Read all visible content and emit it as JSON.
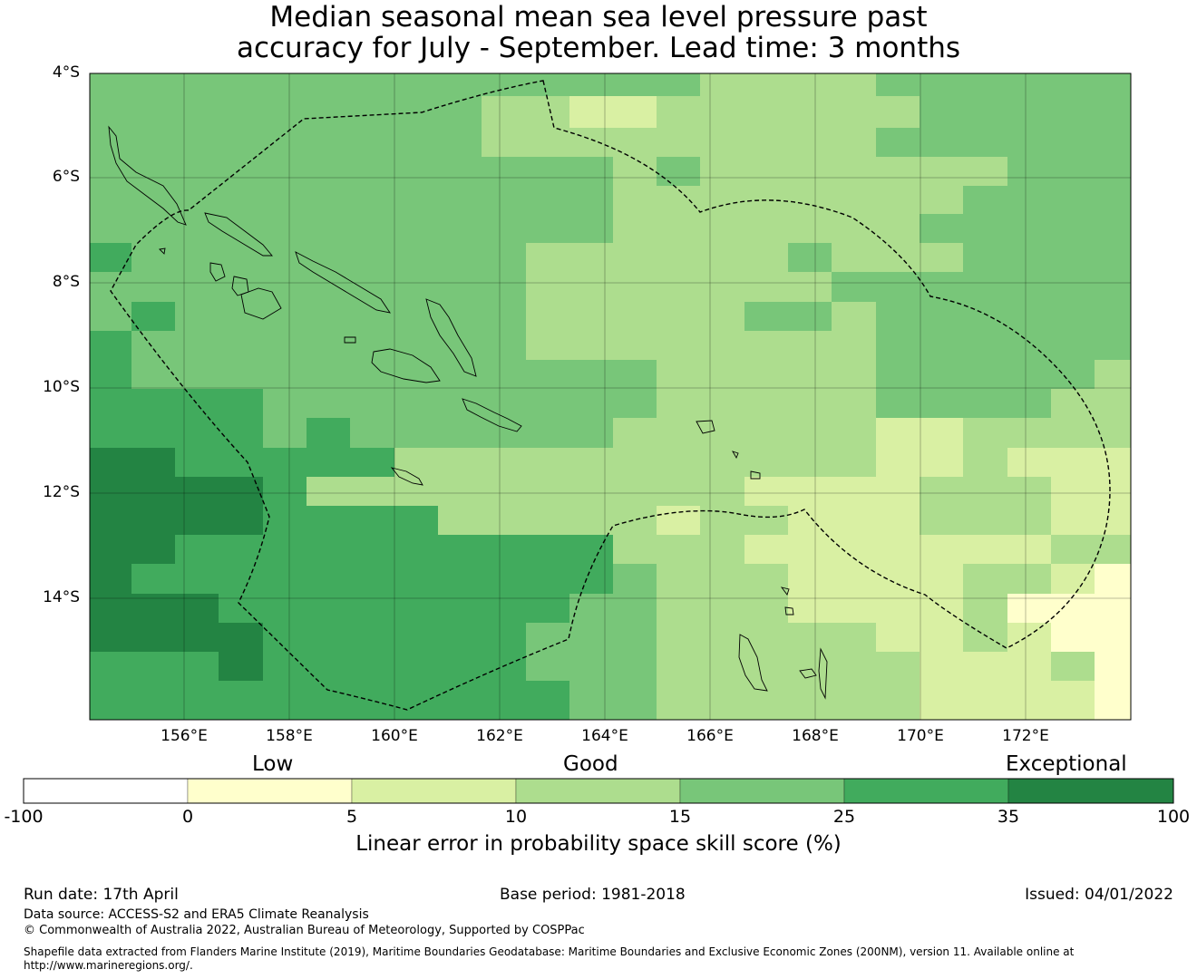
{
  "title": {
    "line1": "Median seasonal mean sea level pressure past",
    "line2": "accuracy for July - September. Lead time: 3 months"
  },
  "map": {
    "lat_labels": [
      "4°S",
      "6°S",
      "8°S",
      "10°S",
      "12°S",
      "14°S"
    ],
    "lon_labels": [
      "156°E",
      "158°E",
      "160°E",
      "162°E",
      "164°E",
      "166°E",
      "168°E",
      "170°E",
      "172°E"
    ],
    "boundary_style": "dashed black line (EEZ outline)",
    "coastline_style": "thin black outlines (islands)"
  },
  "colorbar": {
    "quality_labels": [
      "Low",
      "Good",
      "Exceptional"
    ],
    "ticks": [
      "-100",
      "0",
      "5",
      "10",
      "15",
      "25",
      "35",
      "100"
    ],
    "colors": [
      "#ffffff",
      "#ffffcc",
      "#d9f0a3",
      "#addd8e",
      "#78c679",
      "#41ab5d",
      "#238443"
    ],
    "label": "Linear error in probability space skill score (%)"
  },
  "footer": {
    "run_date": "Run date: 17th April",
    "base_period": "Base period: 1981-2018",
    "issued": "Issued: 04/01/2022",
    "data_source": "Data source: ACCESS-S2 and ERA5 Climate Reanalysis",
    "copyright": "© Commonwealth of Australia 2022, Australian Bureau of Meteorology, Supported by COSPPac",
    "shapefile_line1": "Shapefile data extracted from Flanders Marine Institute (2019), Maritime Boundaries Geodatabase: Maritime Boundaries and Exclusive Economic Zones (200NM), version 11. Available online at",
    "shapefile_line2": "http://www.marineregions.org/."
  }
}
